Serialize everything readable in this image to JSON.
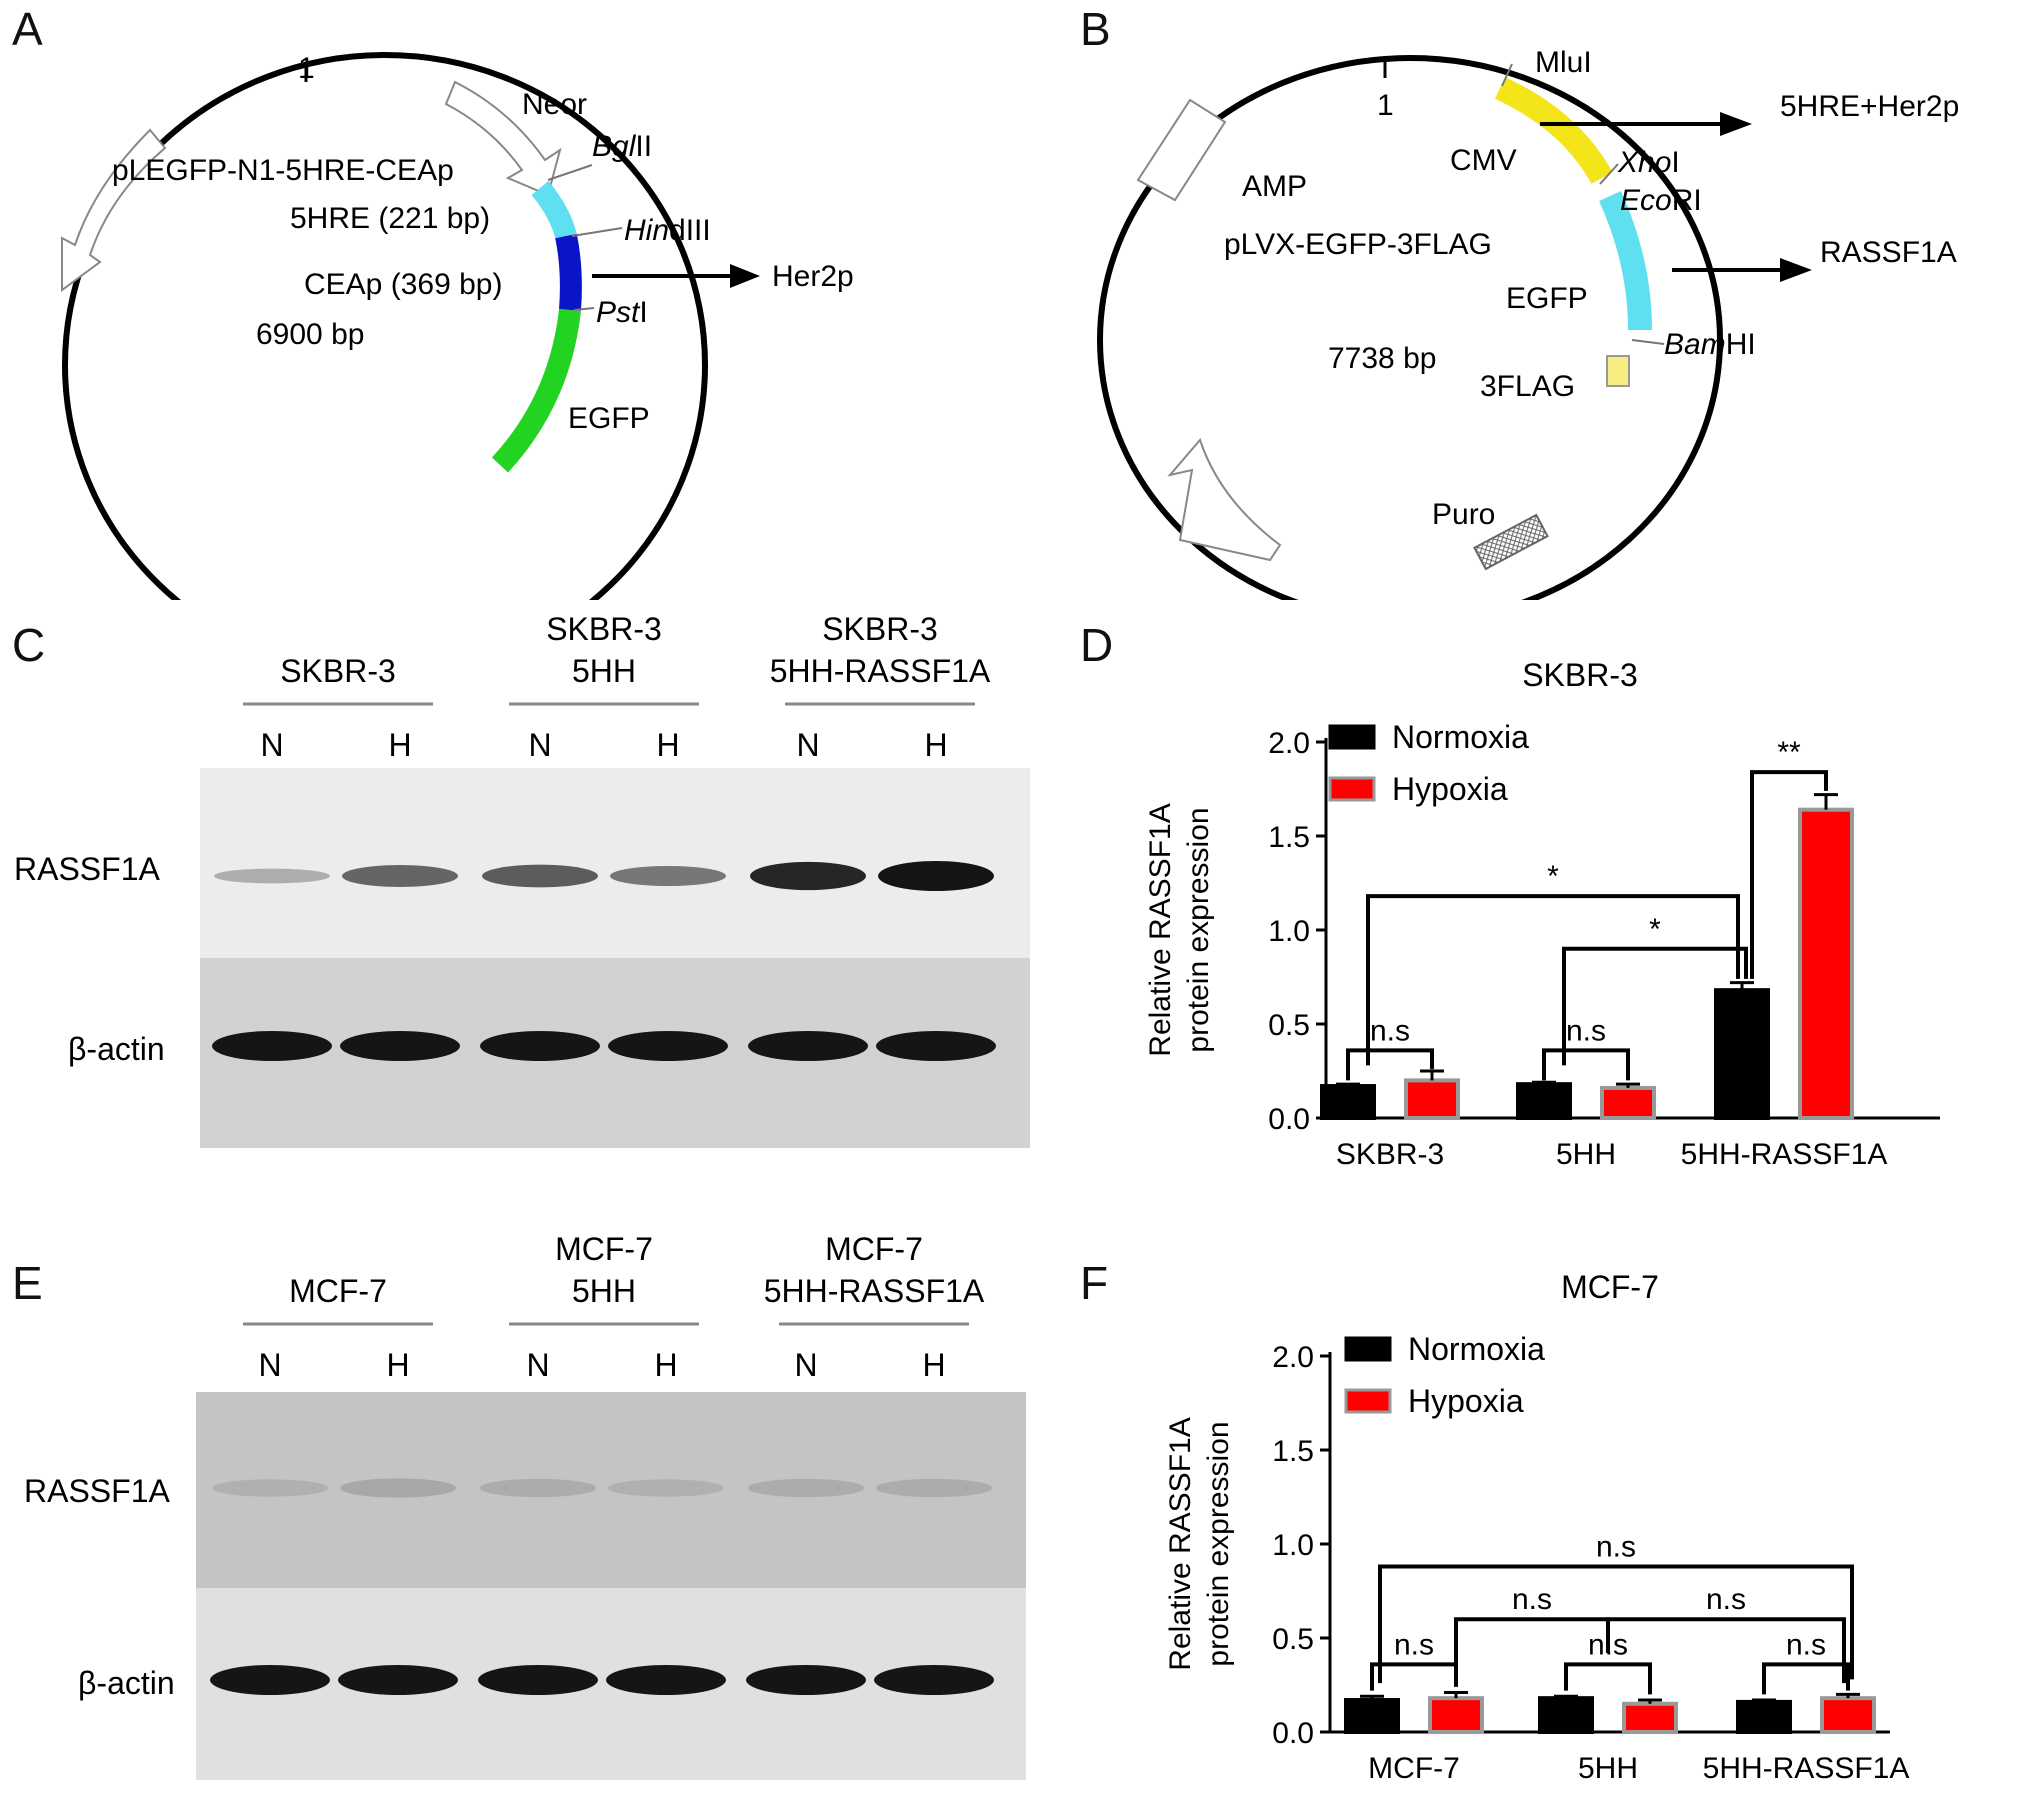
{
  "panels": {
    "a": "A",
    "b": "B",
    "c": "C",
    "d": "D",
    "e": "E",
    "f": "F"
  },
  "plasmid_a": {
    "one": "1",
    "name": "pLEGFP-N1-5HRE-CEAp",
    "neor": "Neor",
    "bglii_it": "Bgl",
    "bglii_rest": "II",
    "hre": "5HRE (221 bp)",
    "hindiii_it": "Hin",
    "hindiii_rest": "dIII",
    "ceap": "CEAp (369 bp)",
    "psti_it": "Pst",
    "psti_rest": "I",
    "size": "6900 bp",
    "egfp": "EGFP",
    "arrow_label": "Her2p"
  },
  "plasmid_b": {
    "one": "1",
    "mlui": "MluI",
    "amp": "AMP",
    "cmv": "CMV",
    "xhoi_it": "Xho",
    "xhoi_rest": "I",
    "ecori_it": "Eco",
    "ecori_rest": "RI",
    "name": "pLVX-EGFP-3FLAG",
    "egfp": "EGFP",
    "size": "7738 bp",
    "bamhi_it": "Bam",
    "bamhi_rest": "HI",
    "flag": "3FLAG",
    "puro": "Puro",
    "arrow1": "5HRE+Her2p",
    "arrow2": "RASSF1A"
  },
  "blot_c": {
    "groups": [
      {
        "line1": "",
        "line2": "SKBR-3"
      },
      {
        "line1": "SKBR-3",
        "line2": "5HH"
      },
      {
        "line1": "SKBR-3",
        "line2": "5HH-RASSF1A"
      }
    ],
    "lanes": [
      "N",
      "H",
      "N",
      "H",
      "N",
      "H"
    ],
    "row1": "RASSF1A",
    "row2": "β-actin",
    "rassf1a_level": [
      0.15,
      0.55,
      0.6,
      0.45,
      0.9,
      1.0
    ],
    "actin_level": [
      1,
      1,
      1,
      1,
      1,
      1
    ]
  },
  "blot_e": {
    "groups": [
      {
        "line1": "",
        "line2": "MCF-7"
      },
      {
        "line1": "MCF-7",
        "line2": "5HH"
      },
      {
        "line1": "MCF-7",
        "line2": "5HH-RASSF1A"
      }
    ],
    "lanes": [
      "N",
      "H",
      "N",
      "H",
      "N",
      "H"
    ],
    "row1": "RASSF1A",
    "row2": "β-actin",
    "rassf1a_level": [
      0.3,
      0.4,
      0.35,
      0.3,
      0.35,
      0.35
    ],
    "actin_level": [
      1,
      1,
      1,
      1,
      1,
      1
    ]
  },
  "chart_data": [
    {
      "type": "bar",
      "title": "SKBR-3",
      "ylabel_line1": "Relative RASSF1A",
      "ylabel_line2": "protein expression",
      "ylim": [
        0,
        2.0
      ],
      "yticks": [
        "0.0",
        "0.5",
        "1.0",
        "1.5",
        "2.0"
      ],
      "categories": [
        "SKBR-3",
        "5HH",
        "5HH-RASSF1A"
      ],
      "series": [
        {
          "name": "Normoxia",
          "color": "#000000",
          "values": [
            0.17,
            0.18,
            0.68
          ],
          "errors": [
            0.01,
            0.01,
            0.04
          ]
        },
        {
          "name": "Hypoxia",
          "color": "#ff0000",
          "values": [
            0.2,
            0.16,
            1.64
          ],
          "errors": [
            0.05,
            0.02,
            0.08
          ]
        }
      ],
      "annotations": [
        "n.s",
        "n.s",
        "*",
        "*",
        "**"
      ]
    },
    {
      "type": "bar",
      "title": "MCF-7",
      "ylabel_line1": "Relative RASSF1A",
      "ylabel_line2": "protein expression",
      "ylim": [
        0,
        2.0
      ],
      "yticks": [
        "0.0",
        "0.5",
        "1.0",
        "1.5",
        "2.0"
      ],
      "categories": [
        "MCF-7",
        "5HH",
        "5HH-RASSF1A"
      ],
      "series": [
        {
          "name": "Normoxia",
          "color": "#000000",
          "values": [
            0.17,
            0.18,
            0.16
          ],
          "errors": [
            0.02,
            0.01,
            0.01
          ]
        },
        {
          "name": "Hypoxia",
          "color": "#ff0000",
          "values": [
            0.18,
            0.15,
            0.18
          ],
          "errors": [
            0.03,
            0.02,
            0.02
          ]
        }
      ],
      "annotations": [
        "n.s",
        "n.s",
        "n.s",
        "n.s",
        "n.s",
        "n.s"
      ]
    }
  ]
}
